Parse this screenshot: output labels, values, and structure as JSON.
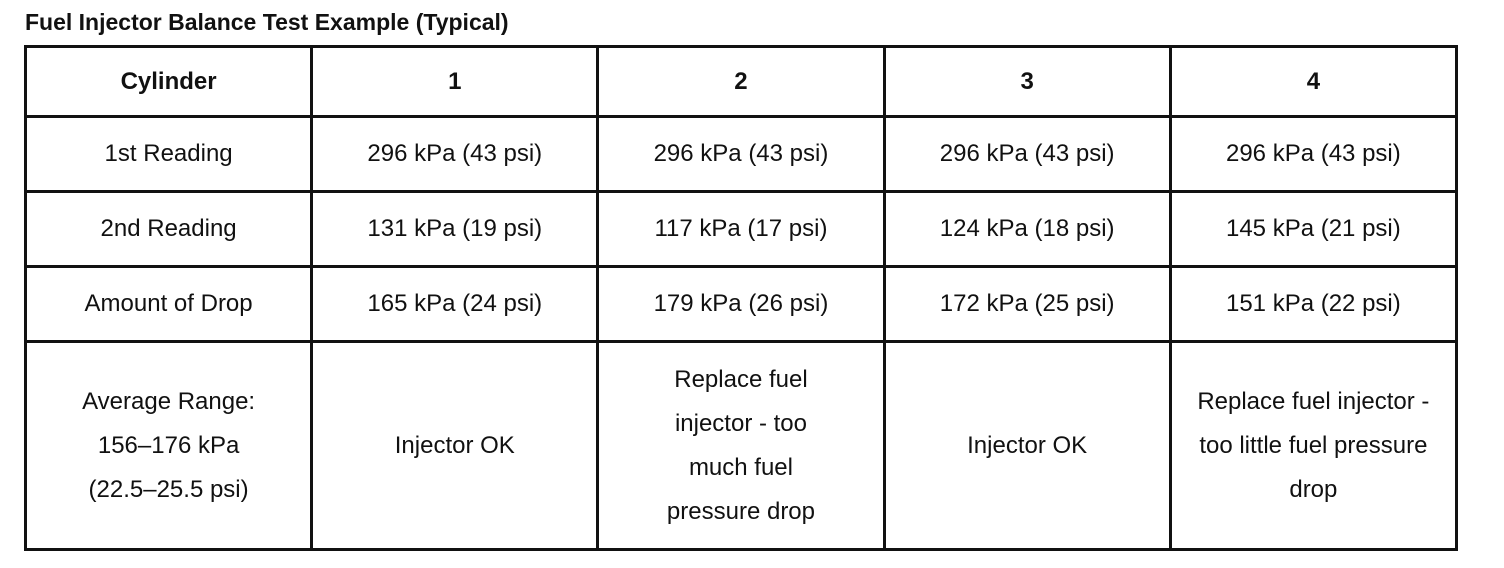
{
  "title": "Fuel Injector Balance Test Example (Typical)",
  "table": {
    "header": [
      "Cylinder",
      "1",
      "2",
      "3",
      "4"
    ],
    "rows": [
      {
        "label": "1st Reading",
        "cells": [
          "296 kPa (43 psi)",
          "296 kPa (43 psi)",
          "296 kPa (43 psi)",
          "296 kPa (43 psi)"
        ]
      },
      {
        "label": "2nd Reading",
        "cells": [
          "131 kPa (19 psi)",
          "117 kPa (17 psi)",
          "124 kPa (18 psi)",
          "145 kPa (21 psi)"
        ]
      },
      {
        "label": "Amount of Drop",
        "cells": [
          "165 kPa (24 psi)",
          "179 kPa (26 psi)",
          "172 kPa (25 psi)",
          "151 kPa (22 psi)"
        ]
      },
      {
        "label": "Average Range:\n156–176 kPa\n(22.5–25.5 psi)",
        "cells": [
          "Injector OK",
          "Replace fuel injector - too much fuel pressure drop",
          "Injector OK",
          "Replace fuel injector - too little fuel pressure drop"
        ]
      }
    ]
  }
}
